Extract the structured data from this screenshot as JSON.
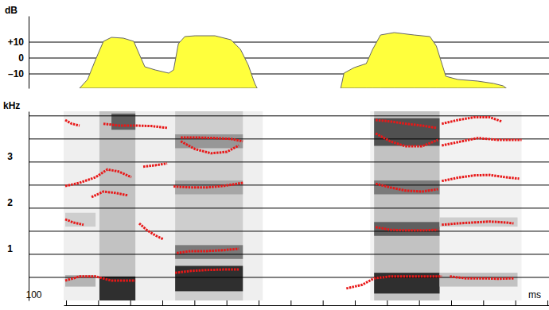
{
  "chart_data": [
    {
      "type": "area",
      "ylabel": "dB",
      "color": "#ffff3c",
      "grid": true,
      "xlim": [
        98.5,
        401
      ],
      "ylim": [
        -19,
        26.5
      ],
      "yticks": [
        {
          "value": 10,
          "label": "+10"
        },
        0,
        {
          "value": -10,
          "label": "–10"
        }
      ],
      "x": [
        108.4,
        113.4,
        118.4,
        123.3,
        128.3,
        135.7,
        142.2,
        145.6,
        149.1,
        155.6,
        164.0,
        167.0,
        170.0,
        174.0,
        180.4,
        192.8,
        202.7,
        208.7,
        213.6,
        217.6,
        219.1,
        245.0,
        271.2,
        273.2,
        279.6,
        287.1,
        291.1,
        296.0,
        304.5,
        316.9,
        326.8,
        330.8,
        336.7,
        344.2,
        356.6,
        366.5,
        372.4,
        374.4
      ],
      "values": [
        -19,
        -13.5,
        -1,
        10.5,
        13,
        12.5,
        10.5,
        2.5,
        -5.5,
        -7.5,
        -9.5,
        -7.5,
        9,
        13.5,
        14,
        14,
        11.5,
        5.5,
        -4.5,
        -16,
        -19,
        null,
        -19,
        -9.5,
        -6,
        -3.5,
        5.5,
        14.5,
        16,
        14.5,
        13.5,
        7.5,
        -11.5,
        -13.5,
        -14.5,
        -16,
        -17.5,
        -19
      ]
    },
    {
      "type": "spectrogram",
      "ylabel": "kHz",
      "xlabel": "ms",
      "color": "#e81818",
      "grid": true,
      "xlim": [
        98.5,
        401
      ],
      "ylim": [
        0,
        4.1
      ],
      "xticks": [
        100
      ],
      "xminor": [
        120,
        140,
        160,
        180,
        200,
        220,
        240,
        260,
        280,
        300,
        320,
        340,
        360,
        380,
        400
      ],
      "yticks": [
        1,
        2,
        3
      ],
      "yminor": [
        0.5,
        1.5,
        2.5,
        3.5,
        4
      ],
      "regions": [
        [
          98.5,
          222.6,
          0,
          4.1,
          0.12
        ],
        [
          289.6,
          383.9,
          0,
          4.1,
          0.1
        ],
        [
          120.8,
          143.2,
          0,
          4.1,
          0.35
        ],
        [
          120.8,
          143.2,
          0,
          0.52,
          0.85
        ],
        [
          128.3,
          143.2,
          3.7,
          4.05,
          0.7
        ],
        [
          168.0,
          210.2,
          0,
          4.1,
          0.3
        ],
        [
          168.0,
          210.2,
          0.2,
          0.75,
          0.85
        ],
        [
          168.0,
          210.2,
          0.9,
          1.2,
          0.6
        ],
        [
          168.0,
          210.2,
          2.3,
          2.6,
          0.45
        ],
        [
          168.0,
          210.2,
          3.3,
          3.6,
          0.5
        ],
        [
          292.0,
          332.8,
          0,
          4.1,
          0.35
        ],
        [
          292.0,
          332.8,
          0.15,
          0.6,
          0.85
        ],
        [
          292.0,
          332.8,
          1.4,
          1.7,
          0.7
        ],
        [
          292.0,
          332.8,
          2.3,
          2.6,
          0.6
        ],
        [
          292.0,
          332.8,
          3.35,
          3.95,
          0.75
        ],
        [
          332.8,
          381.4,
          0.3,
          0.6,
          0.35
        ],
        [
          332.8,
          381.4,
          1.6,
          1.8,
          0.3
        ],
        [
          99.5,
          118.4,
          0.3,
          0.55,
          0.4
        ],
        [
          99.5,
          118.4,
          1.6,
          1.9,
          0.3
        ]
      ],
      "series": [
        {
          "x": [
            99.5,
            108.4,
            118.4,
            128.3,
            138.2,
            143.2
          ],
          "values": [
            0.43,
            0.52,
            0.52,
            0.43,
            0.43,
            0.43
          ]
        },
        {
          "x": [
            168.0,
            177.9,
            187.8,
            197.8,
            207.7
          ],
          "values": [
            0.6,
            0.64,
            0.66,
            0.67,
            0.67
          ]
        },
        {
          "x": [
            274.7,
            284.6,
            292.0,
            302.0,
            311.9,
            321.8,
            334.2
          ],
          "values": [
            0.26,
            0.34,
            0.48,
            0.52,
            0.52,
            0.52,
            0.52
          ]
        },
        {
          "x": [
            339.2,
            349.1,
            359.1,
            369.0,
            378.9
          ],
          "values": [
            0.52,
            0.48,
            0.48,
            0.47,
            0.48
          ]
        },
        {
          "x": [
            99.5,
            104.5,
            110.9
          ],
          "values": [
            1.76,
            1.69,
            1.64
          ]
        },
        {
          "x": [
            115.9,
            123.3,
            130.8,
            138.2
          ],
          "values": [
            2.24,
            2.36,
            2.33,
            2.28
          ]
        },
        {
          "x": [
            145.6,
            150.6,
            155.6,
            160.5
          ],
          "values": [
            1.67,
            1.52,
            1.41,
            1.33
          ]
        },
        {
          "x": [
            169.0,
            177.9,
            187.8,
            197.8,
            207.7
          ],
          "values": [
            1.03,
            1.07,
            1.07,
            1.09,
            1.12
          ]
        },
        {
          "x": [
            293.0,
            302.0,
            311.9,
            321.8,
            331.8
          ],
          "values": [
            1.59,
            1.53,
            1.52,
            1.52,
            1.53
          ]
        },
        {
          "x": [
            334.2,
            344.2,
            354.1,
            364.0,
            374.0,
            378.9
          ],
          "values": [
            1.64,
            1.67,
            1.69,
            1.71,
            1.69,
            1.67
          ]
        },
        {
          "x": [
            99.5,
            108.4,
            118.4,
            125.8,
            133.2,
            140.7
          ],
          "values": [
            2.48,
            2.55,
            2.67,
            2.84,
            2.79,
            2.67
          ]
        },
        {
          "x": [
            148.1,
            155.6,
            163.0
          ],
          "values": [
            2.9,
            2.93,
            2.97
          ]
        },
        {
          "x": [
            167.0,
            177.9,
            187.8,
            197.8,
            210.2
          ],
          "values": [
            2.47,
            2.45,
            2.45,
            2.48,
            2.55
          ]
        },
        {
          "x": [
            293.0,
            302.0,
            311.9,
            321.8,
            331.8
          ],
          "values": [
            2.53,
            2.45,
            2.38,
            2.36,
            2.41
          ]
        },
        {
          "x": [
            334.2,
            344.2,
            354.1,
            364.0,
            374.0,
            382.4
          ],
          "values": [
            2.59,
            2.66,
            2.71,
            2.72,
            2.67,
            2.64
          ]
        },
        {
          "x": [
            99.5,
            103.5,
            108.4
          ],
          "values": [
            3.91,
            3.83,
            3.79
          ]
        },
        {
          "x": [
            123.3,
            133.2,
            143.2,
            153.1,
            163.0
          ],
          "values": [
            3.83,
            3.79,
            3.79,
            3.78,
            3.74
          ]
        },
        {
          "x": [
            171.5,
            182.9,
            192.8,
            202.7,
            210.2
          ],
          "values": [
            3.53,
            3.53,
            3.52,
            3.5,
            3.45
          ]
        },
        {
          "x": [
            171.5,
            180.4,
            190.3,
            200.2,
            207.7
          ],
          "values": [
            3.45,
            3.28,
            3.19,
            3.22,
            3.36
          ]
        },
        {
          "x": [
            293.0,
            302.0,
            311.9,
            321.8,
            330.8
          ],
          "values": [
            3.91,
            3.88,
            3.83,
            3.79,
            3.74
          ]
        },
        {
          "x": [
            293.0,
            302.0,
            311.9,
            321.8,
            331.8
          ],
          "values": [
            3.62,
            3.45,
            3.34,
            3.34,
            3.48
          ]
        },
        {
          "x": [
            334.2,
            344.2,
            354.1,
            364.0,
            371.5
          ],
          "values": [
            3.83,
            3.91,
            3.97,
            3.97,
            3.88
          ]
        },
        {
          "x": [
            334.2,
            346.6,
            356.6,
            369.0,
            383.9
          ],
          "values": [
            3.36,
            3.45,
            3.52,
            3.48,
            3.48
          ]
        }
      ]
    }
  ]
}
